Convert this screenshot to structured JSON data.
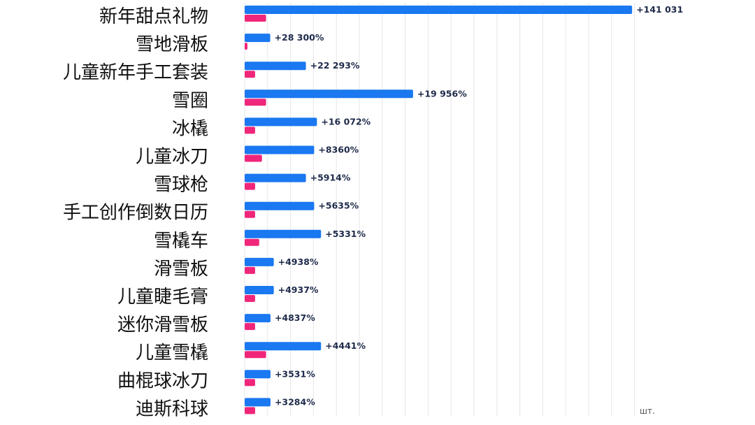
{
  "chart_data": {
    "type": "bar",
    "orientation": "horizontal",
    "categories": [
      "新年甜点礼物",
      "雪地滑板",
      "儿童新年手工套装",
      "雪圈",
      "冰橇",
      "儿童冰刀",
      "雪球枪",
      "手工创作倒数日历",
      "雪橇车",
      "滑雪板",
      "儿童睫毛膏",
      "迷你滑雪板",
      "儿童雪橇",
      "曲棍球冰刀",
      "迪斯科球"
    ],
    "series": [
      {
        "color": "#1a78f0",
        "values": [
          141031,
          9300,
          22293,
          61300,
          26300,
          25300,
          22293,
          25300,
          27800,
          10600,
          10600,
          9400,
          27800,
          9400,
          9400
        ]
      },
      {
        "color": "#f0267a",
        "values": [
          7800,
          1000,
          3800,
          7800,
          3800,
          6300,
          3800,
          3800,
          5300,
          3800,
          3800,
          3800,
          7800,
          3800,
          3800
        ]
      }
    ],
    "data_labels": [
      "+141 031",
      "+28 300%",
      "+22 293%",
      "+19 956%",
      "+16 072%",
      "+8360%",
      "+5914%",
      "+5635%",
      "+5331%",
      "+4938%",
      "+4937%",
      "+4837%",
      "+4441%",
      "+3531%",
      "+3284%"
    ],
    "unit_label": "шт.",
    "xlim": [
      0,
      142000
    ],
    "grid": true,
    "legend": "none"
  }
}
